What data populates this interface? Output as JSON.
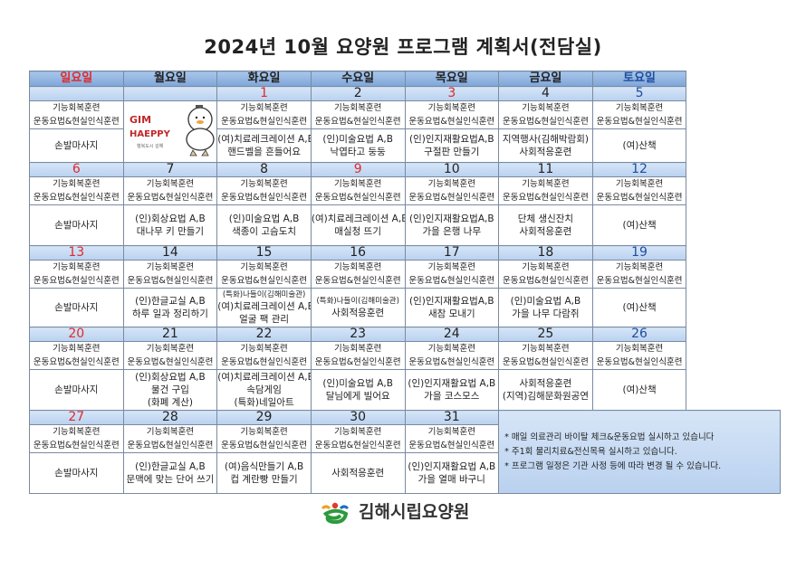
{
  "title": "2024년 10월 요양원 프로그램 계획서(전담실)",
  "weekdays": [
    "일요일",
    "월요일",
    "화요일",
    "수요일",
    "목요일",
    "금요일",
    "토요일"
  ],
  "colors": {
    "sunday": "#e02a2a",
    "saturday": "#1f4ea0",
    "header": "#8db4e2",
    "date_row": "#c5d9f1"
  },
  "common": {
    "line1": "기능회복훈련",
    "line2": "운동요법&현실인식훈련"
  },
  "mascot": {
    "text_top": "GIM",
    "text_bottom": "HAEPPY",
    "caption": "행복도시 김해",
    "icon": "duck-mascot"
  },
  "weeks": [
    [
      {
        "date": "",
        "color": "",
        "activity": [
          "손발마사지"
        ]
      },
      {
        "date": "",
        "color": "",
        "mascot": true
      },
      {
        "date": "1",
        "color": "red",
        "activity": [
          "(여)치료레크레이션 A,B",
          "핸드벨을 흔들어요"
        ]
      },
      {
        "date": "2",
        "color": "",
        "activity": [
          "(인)미술요법 A,B",
          "낙엽타고 둥둥"
        ]
      },
      {
        "date": "3",
        "color": "red",
        "activity": [
          "(인)인지재활요법A,B",
          "구절판 만들기"
        ]
      },
      {
        "date": "4",
        "color": "",
        "activity": [
          "지역행사(김해박람회)",
          "사회적응훈련"
        ]
      },
      {
        "date": "5",
        "color": "blue",
        "activity": [
          "(여)산책"
        ]
      }
    ],
    [
      {
        "date": "6",
        "color": "red",
        "activity": [
          "손발마사지"
        ]
      },
      {
        "date": "7",
        "color": "",
        "activity": [
          "(인)회상요법 A,B",
          "대나무 키 만들기"
        ]
      },
      {
        "date": "8",
        "color": "",
        "activity": [
          "(인)미술요법 A,B",
          "색종이 고슴도치"
        ]
      },
      {
        "date": "9",
        "color": "red",
        "activity": [
          "(여)치료레크레이션 A,B",
          "매실청 뜨기"
        ]
      },
      {
        "date": "10",
        "color": "",
        "activity": [
          "(인)인지재활요법A,B",
          "가을 은행 나무"
        ]
      },
      {
        "date": "11",
        "color": "",
        "activity": [
          "단체 생신잔치",
          "사회적응훈련"
        ]
      },
      {
        "date": "12",
        "color": "blue",
        "activity": [
          "(여)산책"
        ]
      }
    ],
    [
      {
        "date": "13",
        "color": "red",
        "activity": [
          "손발마사지"
        ]
      },
      {
        "date": "14",
        "color": "",
        "activity": [
          "(인)한글교실 A,B",
          "하루 일과 정리하기"
        ]
      },
      {
        "date": "15",
        "color": "",
        "activity": [
          "(특화)나들이(김해미술관)",
          "(여)치료레크레이션 A,B",
          "얼굴 팩 관리"
        ],
        "small_first": true
      },
      {
        "date": "16",
        "color": "",
        "activity": [
          "(특화)나들이(김해미술관)",
          "사회적응훈련"
        ],
        "small_first": true
      },
      {
        "date": "17",
        "color": "",
        "activity": [
          "(인)인지재활요법A,B",
          "새참 모내기"
        ]
      },
      {
        "date": "18",
        "color": "",
        "activity": [
          "(인)미술요법 A,B",
          "가을 나무 다람쥐"
        ]
      },
      {
        "date": "19",
        "color": "blue",
        "activity": [
          "(여)산책"
        ]
      }
    ],
    [
      {
        "date": "20",
        "color": "red",
        "activity": [
          "손발마사지"
        ]
      },
      {
        "date": "21",
        "color": "",
        "activity": [
          "(인)회상요법 A,B",
          "물건 구입",
          "(화폐 계산)"
        ]
      },
      {
        "date": "22",
        "color": "",
        "activity": [
          "(여)치료레크레이션 A,B",
          "속담게임",
          "(특화)네일아트"
        ]
      },
      {
        "date": "23",
        "color": "",
        "activity": [
          "(인)미술요법 A,B",
          "달님에게 빌어요"
        ]
      },
      {
        "date": "24",
        "color": "",
        "activity": [
          "(인)인지재활요법 A,B",
          "가을 코스모스"
        ]
      },
      {
        "date": "25",
        "color": "",
        "activity": [
          "사회적응훈련",
          "(지역)김해문화원공연"
        ]
      },
      {
        "date": "26",
        "color": "blue",
        "activity": [
          "(여)산책"
        ]
      }
    ],
    [
      {
        "date": "27",
        "color": "red",
        "activity": [
          "손발마사지"
        ]
      },
      {
        "date": "28",
        "color": "",
        "activity": [
          "(인)한글교실 A,B",
          "문맥에 맞는 단어 쓰기"
        ]
      },
      {
        "date": "29",
        "color": "",
        "activity": [
          "(여)음식만들기 A,B",
          "컵 계란빵 만들기"
        ]
      },
      {
        "date": "30",
        "color": "",
        "activity": [
          "사회적응훈련"
        ]
      },
      {
        "date": "31",
        "color": "",
        "activity": [
          "(인)인지재활요법 A,B",
          "가을 열매 바구니"
        ]
      }
    ]
  ],
  "notes": [
    "* 매일 의료관리 바이탈 체크&운동요법 실시하고 있습니다",
    "* 주1회 물리치료&전신목욕 실시하고 있습니다.",
    "* 프로그램 일정은 기관 사정 등에 따라 변경 될 수 있습니다."
  ],
  "footer": {
    "org_name": "김해시립요양원",
    "logo_icon": "gimhae-city-logo"
  }
}
